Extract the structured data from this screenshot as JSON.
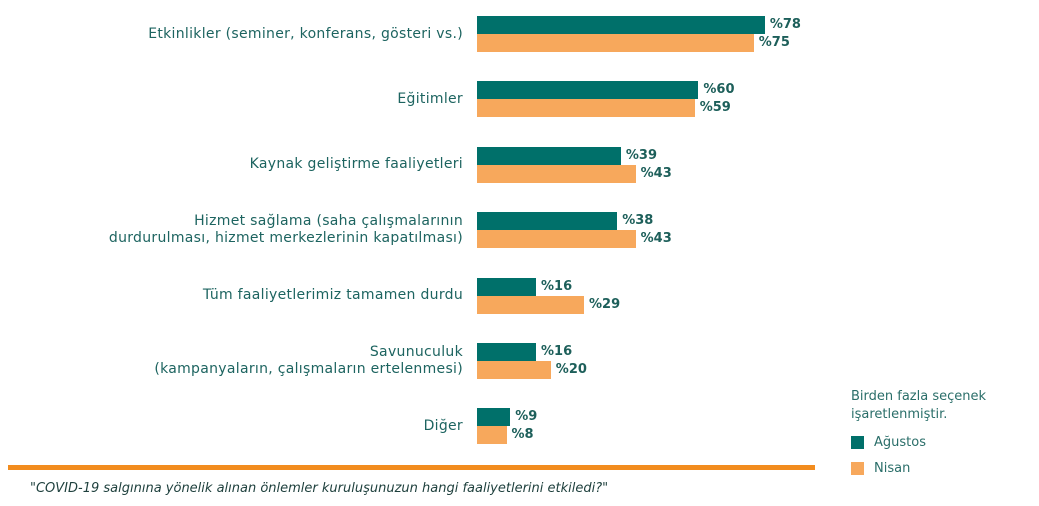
{
  "chart_data": {
    "type": "bar",
    "orientation": "horizontal",
    "question": "\"COVID-19 salgınına yönelik alınan önlemler kuruluşunuzun hangi faaliyetlerini etkiledi?\"",
    "note": "Birden fazla seçenek\nişaretlenmiştir.",
    "categories": [
      "Etkinlikler (seminer, konferans, gösteri vs.)",
      "Eğitimler",
      "Kaynak geliştirme faaliyetleri",
      "Hizmet sağlama (saha çalışmalarının\ndurdurulması, hizmet merkezlerinin kapatılması)",
      "Tüm faaliyetlerimiz tamamen durdu",
      "Savunuculuk\n(kampanyaların, çalışmaların ertelenmesi)",
      "Diğer"
    ],
    "series": [
      {
        "name": "Ağustos",
        "color": "#00706a",
        "values": [
          78,
          60,
          39,
          38,
          16,
          16,
          9
        ],
        "value_labels": [
          "%78",
          "%60",
          "%39",
          "%38",
          "%16",
          "%16",
          "%9"
        ]
      },
      {
        "name": "Nisan",
        "color": "#f7a85c",
        "values": [
          75,
          59,
          43,
          43,
          29,
          20,
          8
        ],
        "value_labels": [
          "%75",
          "%59",
          "%43",
          "%43",
          "%29",
          "%20",
          "%8"
        ]
      }
    ],
    "legend": "bottom-right"
  }
}
